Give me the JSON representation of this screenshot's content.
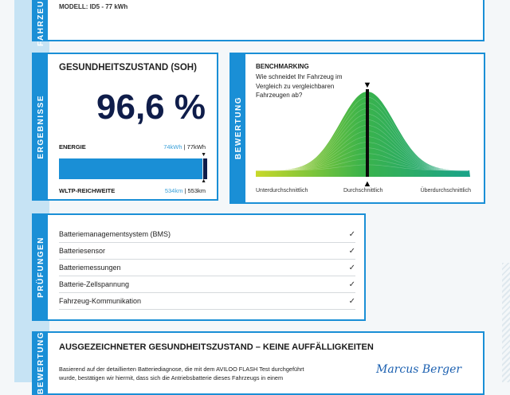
{
  "vehicle": {
    "tab": "FAHRZEUG",
    "model": "MODELL: ID5 - 77 kWh"
  },
  "results": {
    "tab": "ERGEBNISSE",
    "title": "GESUNDHEITSZUSTAND (SOH)",
    "soh": "96,6 %",
    "soh_percent": 96.6,
    "energy_label": "ENERGIE",
    "energy_current": "74kWh",
    "energy_sep": " | ",
    "energy_nominal": "77kWh",
    "range_label": "WLTP-REICHWEITE",
    "range_current": "534km",
    "range_sep": " | ",
    "range_nominal": "553km",
    "bar_color": "#1a8fd6"
  },
  "benchmark": {
    "tab": "BEWERTUNG",
    "title": "BENCHMARKING",
    "question": "Wie schneidet Ihr Fahrzeug im Vergleich zu vergleichbaren Fahrzeugen ab?",
    "labels": [
      "Unterdurchschnittlich",
      "Durchschnittlich",
      "Überdurchschnittlich"
    ],
    "position": "Durchschnittlich"
  },
  "checks": {
    "tab": "PRÜFUNGEN",
    "items": [
      {
        "label": "Batteriemanagementsystem (BMS)",
        "passed": true
      },
      {
        "label": "Batteriesensor",
        "passed": true
      },
      {
        "label": "Batteriemessungen",
        "passed": true
      },
      {
        "label": "Batterie-Zellspannung",
        "passed": true
      },
      {
        "label": "Fahrzeug-Kommunikation",
        "passed": true
      }
    ],
    "check_glyph": "✓"
  },
  "verdict": {
    "tab": "BEWERTUNG",
    "title": "AUSGEZEICHNETER GESUNDHEITSZUSTAND – KEINE AUFFÄLLIGKEITEN",
    "text_line1": "Basierend auf der detaillierten Batteriediagnose, die mit dem AVILOO FLASH Test durchgeführt",
    "text_line2": "wurde, bestätigen wir hiermit, dass sich die Antriebsbatterie dieses Fahrzeugs in einem",
    "signature": "Marcus Berger"
  },
  "colors": {
    "accent": "#1a8fd6",
    "navy": "#0f1d4a",
    "light_band": "#c6e3f4"
  }
}
